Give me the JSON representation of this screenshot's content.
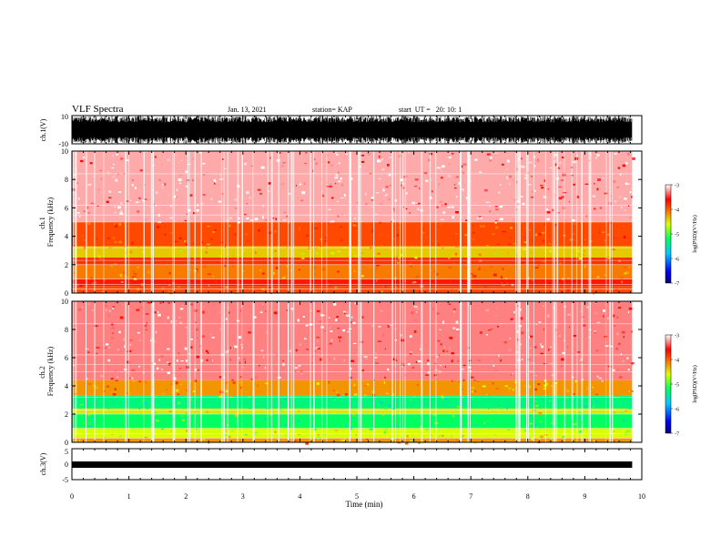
{
  "header": {
    "title": "VLF Spectra",
    "date": "Jan. 13, 2021",
    "station": "station= KAP",
    "start": "start  UT =   20: 10: 1"
  },
  "chart_data": [
    {
      "type": "line",
      "panel": "ch1-waveform",
      "ylabel": "ch.1(V)",
      "ylim": [
        -10,
        10
      ],
      "yticks": [
        "10",
        "-10"
      ]
    },
    {
      "type": "heatmap",
      "panel": "ch1-spectrogram",
      "ylabel": "ch.1\nFrequency (kHz)",
      "ylim": [
        0,
        10
      ],
      "yticks": [
        "0",
        "2",
        "4",
        "6",
        "8",
        "10"
      ],
      "colorbar": {
        "label": "log(PSD)(V²/Hz)",
        "ticks": [
          "-3",
          "-4",
          "-5",
          "-6",
          "-7"
        ],
        "range": [
          -7,
          -3
        ]
      },
      "bands": [
        {
          "freq_khz": [
            0.0,
            0.5
          ],
          "level": -3.9
        },
        {
          "freq_khz": [
            0.5,
            1.0
          ],
          "level": -3.7
        },
        {
          "freq_khz": [
            1.0,
            2.0
          ],
          "level": -4.1
        },
        {
          "freq_khz": [
            2.0,
            2.5
          ],
          "level": -3.8
        },
        {
          "freq_khz": [
            2.5,
            3.3
          ],
          "level": -4.4
        },
        {
          "freq_khz": [
            3.3,
            5.0
          ],
          "level": -3.9
        },
        {
          "freq_khz": [
            5.0,
            10.0
          ],
          "level": -3.2
        }
      ]
    },
    {
      "type": "heatmap",
      "panel": "ch2-spectrogram",
      "ylabel": "ch.2\nFrequency (kHz)",
      "ylim": [
        0,
        10
      ],
      "yticks": [
        "0",
        "2",
        "4",
        "6",
        "8",
        "10"
      ],
      "colorbar": {
        "label": "log(PSD)(V²/Hz)",
        "ticks": [
          "-3",
          "-4",
          "-5",
          "-6",
          "-7"
        ],
        "range": [
          -7,
          -3
        ]
      },
      "bands": [
        {
          "freq_khz": [
            0.0,
            0.3
          ],
          "level": -4.2
        },
        {
          "freq_khz": [
            0.3,
            1.0
          ],
          "level": -4.6
        },
        {
          "freq_khz": [
            1.0,
            2.0
          ],
          "level": -5.2
        },
        {
          "freq_khz": [
            2.0,
            2.4
          ],
          "level": -4.5
        },
        {
          "freq_khz": [
            2.4,
            3.3
          ],
          "level": -5.3
        },
        {
          "freq_khz": [
            3.3,
            4.4
          ],
          "level": -4.2
        },
        {
          "freq_khz": [
            4.4,
            10.0
          ],
          "level": -3.3
        }
      ]
    },
    {
      "type": "line",
      "panel": "ch3-waveform",
      "ylabel": "ch.3(V)",
      "ylim": [
        -5,
        5
      ],
      "yticks": [
        "5",
        "0",
        "-5"
      ],
      "xlabel": "Time (min)",
      "xlim": [
        0,
        10
      ],
      "xticks": [
        "0",
        "1",
        "2",
        "3",
        "4",
        "5",
        "6",
        "7",
        "8",
        "9",
        "10"
      ],
      "data_end_min": 9.83
    }
  ]
}
